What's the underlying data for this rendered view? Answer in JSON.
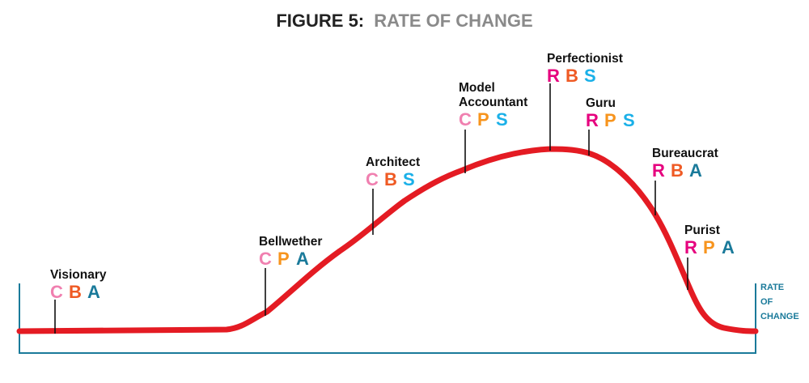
{
  "title": {
    "prefix": "FIGURE 5:",
    "suffix": "RATE OF CHANGE",
    "prefix_color": "#222222",
    "suffix_color": "#8a8a8a"
  },
  "axis_label": {
    "lines": [
      "RATE",
      "OF",
      "CHANGE"
    ],
    "color": "#1a7a9a"
  },
  "colors": {
    "curve": "#e41b23",
    "frame": "#1a7a9a",
    "C": "#f080b0",
    "B": "#ef5a24",
    "A": "#1a7a9a",
    "P": "#f7941d",
    "S": "#1ab0e8",
    "R": "#e6007e"
  },
  "nodes": [
    {
      "name_lines": [
        "Visionary"
      ],
      "codes": [
        "C",
        "B",
        "A"
      ]
    },
    {
      "name_lines": [
        "Bellwether"
      ],
      "codes": [
        "C",
        "P",
        "A"
      ]
    },
    {
      "name_lines": [
        "Architect"
      ],
      "codes": [
        "C",
        "B",
        "S"
      ]
    },
    {
      "name_lines": [
        "Model",
        "Accountant"
      ],
      "codes": [
        "C",
        "P",
        "S"
      ]
    },
    {
      "name_lines": [
        "Perfectionist"
      ],
      "codes": [
        "R",
        "B",
        "S"
      ]
    },
    {
      "name_lines": [
        "Guru"
      ],
      "codes": [
        "R",
        "P",
        "S"
      ]
    },
    {
      "name_lines": [
        "Bureaucrat"
      ],
      "codes": [
        "R",
        "B",
        "A"
      ]
    },
    {
      "name_lines": [
        "Purist"
      ],
      "codes": [
        "R",
        "P",
        "A"
      ]
    }
  ]
}
